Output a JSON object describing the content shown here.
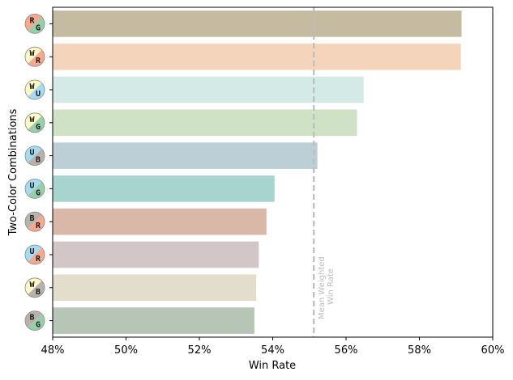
{
  "chart_data": {
    "type": "bar",
    "orientation": "horizontal",
    "xlabel": "Win Rate",
    "ylabel": "Two-Color Combinations",
    "xlim": [
      0.48,
      0.6
    ],
    "xticks": [
      0.48,
      0.5,
      0.52,
      0.54,
      0.56,
      0.58,
      0.6
    ],
    "xtick_labels": [
      "48%",
      "50%",
      "52%",
      "54%",
      "56%",
      "58%",
      "60%"
    ],
    "grid": false,
    "categories": [
      {
        "top": "R",
        "bottom": "G",
        "value": 0.5915,
        "color": "#c4bba0"
      },
      {
        "top": "W",
        "bottom": "R",
        "value": 0.5913,
        "color": "#f4d4ba"
      },
      {
        "top": "W",
        "bottom": "U",
        "value": 0.5648,
        "color": "#d4eae6"
      },
      {
        "top": "W",
        "bottom": "G",
        "value": 0.563,
        "color": "#cfe2c6"
      },
      {
        "top": "U",
        "bottom": "B",
        "value": 0.5522,
        "color": "#bccfd7"
      },
      {
        "top": "U",
        "bottom": "G",
        "value": 0.5405,
        "color": "#a7d4cf"
      },
      {
        "top": "B",
        "bottom": "R",
        "value": 0.5383,
        "color": "#dab8a8"
      },
      {
        "top": "U",
        "bottom": "R",
        "value": 0.5362,
        "color": "#d2c6c6"
      },
      {
        "top": "W",
        "bottom": "B",
        "value": 0.5355,
        "color": "#e3ddcc"
      },
      {
        "top": "B",
        "bottom": "G",
        "value": 0.535,
        "color": "#b6c5b6"
      }
    ],
    "mean_line": {
      "value": 0.5512,
      "label_line1": "Mean Weighted",
      "label_line2": "Win Rate",
      "color": "#bdbdbd"
    },
    "mana_colors": {
      "W": "#fdf8c6",
      "U": "#a6daf0",
      "B": "#b9b1ac",
      "R": "#f7a98f",
      "G": "#98cfaa"
    }
  }
}
